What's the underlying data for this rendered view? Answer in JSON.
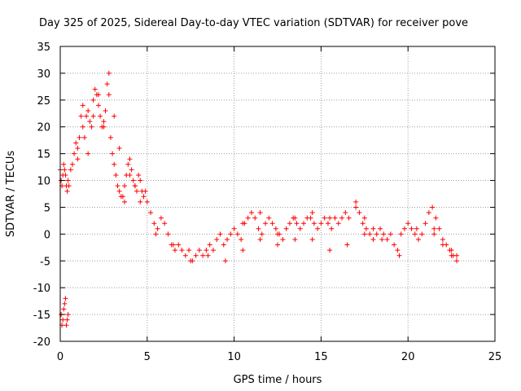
{
  "chart_data": {
    "type": "scatter",
    "title": "Day 325 of 2025, Sidereal Day-to-day VTEC variation (SDTVAR) for receiver pove",
    "xlabel": "GPS time / hours",
    "ylabel": "SDTVAR / TECUs",
    "xlim": [
      0,
      25
    ],
    "ylim": [
      -20,
      35
    ],
    "xticks": [
      0,
      5,
      10,
      15,
      20,
      25
    ],
    "yticks": [
      -20,
      -15,
      -10,
      -5,
      0,
      5,
      10,
      15,
      20,
      25,
      30,
      35
    ],
    "xtick_labels": [
      "0",
      "5",
      "10",
      "15",
      "20",
      "25"
    ],
    "ytick_labels": [
      "-20",
      "-15",
      "-10",
      "-5",
      "0",
      "5",
      "10",
      "15",
      "20",
      "25",
      "30",
      "35"
    ],
    "grid": true,
    "marker": "+",
    "color": "#ff0000",
    "series": [
      {
        "name": "SDTVAR",
        "x": [
          0.0,
          0.05,
          0.1,
          0.15,
          0.2,
          0.25,
          0.3,
          0.35,
          0.4,
          0.45,
          0.5,
          0.6,
          0.7,
          0.8,
          0.9,
          1.0,
          1.1,
          1.2,
          1.3,
          1.4,
          1.5,
          1.6,
          1.7,
          1.8,
          1.9,
          2.0,
          2.1,
          2.2,
          2.3,
          2.4,
          2.5,
          2.6,
          2.7,
          2.8,
          2.9,
          3.0,
          3.1,
          3.2,
          3.3,
          3.4,
          3.5,
          3.6,
          3.7,
          3.8,
          3.9,
          4.0,
          4.1,
          4.2,
          4.3,
          4.4,
          4.5,
          4.6,
          4.7,
          4.8,
          4.9,
          5.0,
          5.2,
          5.4,
          5.6,
          5.8,
          6.0,
          6.2,
          6.4,
          6.6,
          6.8,
          7.0,
          7.2,
          7.4,
          7.6,
          7.8,
          8.0,
          8.2,
          8.4,
          8.6,
          8.8,
          9.0,
          9.2,
          9.4,
          9.6,
          9.8,
          10.0,
          10.2,
          10.4,
          10.6,
          10.8,
          11.0,
          11.2,
          11.4,
          11.6,
          11.8,
          12.0,
          12.2,
          12.4,
          12.6,
          12.8,
          13.0,
          13.2,
          13.4,
          13.6,
          13.8,
          14.0,
          14.2,
          14.4,
          14.6,
          14.8,
          15.0,
          15.2,
          15.4,
          15.6,
          15.8,
          16.0,
          16.2,
          16.4,
          16.6,
          17.0,
          17.2,
          17.4,
          17.6,
          17.8,
          18.0,
          18.2,
          18.4,
          18.6,
          18.8,
          19.0,
          19.2,
          19.4,
          19.6,
          19.8,
          20.0,
          20.2,
          20.4,
          20.6,
          20.8,
          21.0,
          21.2,
          21.4,
          21.6,
          21.8,
          22.0,
          22.2,
          22.4,
          22.6,
          22.8,
          0.05,
          0.1,
          0.15,
          0.2,
          0.25,
          0.3,
          0.35,
          0.4,
          0.45,
          1.0,
          1.3,
          1.6,
          1.9,
          2.2,
          2.5,
          2.8,
          3.1,
          3.4,
          3.7,
          4.0,
          4.3,
          4.6,
          5.5,
          6.5,
          7.5,
          8.5,
          9.5,
          10.5,
          11.5,
          12.5,
          13.5,
          14.5,
          15.5,
          16.5,
          17.5,
          18.5,
          19.5,
          20.5,
          21.5,
          22.5,
          10.5,
          11.5,
          12.5,
          13.5,
          14.5,
          15.5,
          21.5,
          22.0,
          22.5,
          22.8,
          17.0,
          17.5,
          18.0
        ],
        "y": [
          12,
          10,
          9,
          11,
          13,
          12,
          11,
          9,
          8,
          10,
          9,
          12,
          13,
          15,
          17,
          16,
          18,
          22,
          20,
          18,
          22,
          23,
          21,
          20,
          25,
          27,
          26,
          24,
          22,
          20,
          21,
          23,
          28,
          26,
          18,
          15,
          13,
          11,
          9,
          8,
          7,
          7,
          9,
          11,
          13,
          14,
          12,
          10,
          9,
          8,
          11,
          10,
          8,
          7,
          8,
          6,
          4,
          2,
          1,
          3,
          2,
          0,
          -2,
          -3,
          -2,
          -3,
          -4,
          -3,
          -5,
          -4,
          -3,
          -4,
          -3,
          -2,
          -3,
          -1,
          0,
          -2,
          -1,
          0,
          1,
          0,
          -1,
          2,
          3,
          4,
          3,
          1,
          0,
          2,
          3,
          2,
          1,
          0,
          -1,
          1,
          2,
          3,
          2,
          1,
          2,
          3,
          3,
          2,
          1,
          2,
          3,
          2,
          1,
          3,
          2,
          3,
          4,
          3,
          6,
          4,
          2,
          1,
          0,
          -1,
          0,
          1,
          0,
          -1,
          0,
          -2,
          -3,
          0,
          1,
          2,
          1,
          0,
          -1,
          0,
          2,
          4,
          5,
          3,
          1,
          -1,
          -2,
          -3,
          -4,
          -4,
          -15,
          -17,
          -16,
          -14,
          -13,
          -12,
          -17,
          -16,
          -15,
          14,
          24,
          15,
          22,
          26,
          20,
          30,
          22,
          16,
          6,
          11,
          9,
          6,
          0,
          -2,
          -5,
          -4,
          -5,
          -3,
          -1,
          -2,
          -1,
          -1,
          -3,
          -2,
          0,
          -1,
          -4,
          1,
          0,
          -4,
          2,
          4,
          0,
          3,
          4,
          3,
          1,
          -2,
          -3,
          -5,
          5,
          3,
          1
        ]
      }
    ]
  }
}
